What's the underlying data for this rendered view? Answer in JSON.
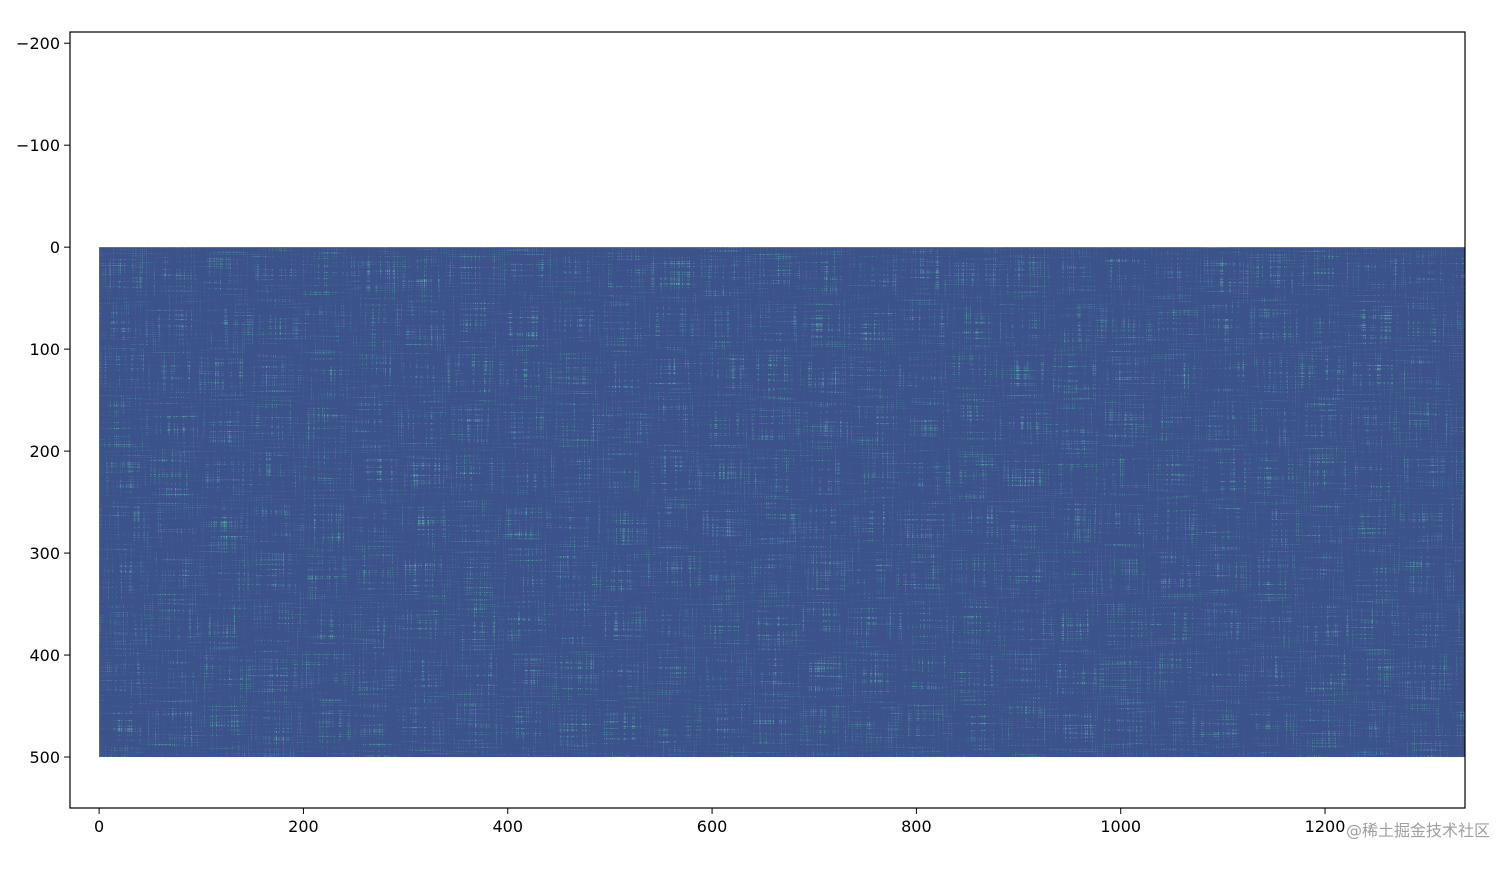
{
  "chart_data": {
    "type": "heatmap",
    "xlim": [
      -28.5,
      1337
    ],
    "ylim": [
      550,
      -211
    ],
    "xticks": [
      0,
      200,
      400,
      600,
      800,
      1000,
      1200
    ],
    "yticks": [
      {
        "value": -200,
        "label": "−200"
      },
      {
        "value": -100,
        "label": "−100"
      },
      0,
      100,
      200,
      300,
      400,
      500
    ],
    "image": {
      "x": [
        0,
        1337
      ],
      "y": [
        0,
        500
      ],
      "color": "#3b528b"
    },
    "watermark": "@稀土掘金技术社区"
  }
}
